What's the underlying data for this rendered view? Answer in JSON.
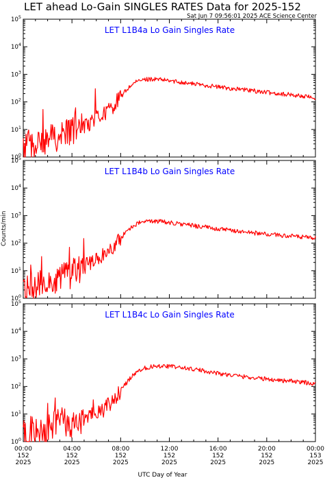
{
  "header": {
    "title": "LET ahead Lo-Gain SINGLES RATES Data for 2025-152",
    "timestamp": "Sat Jun  7 09:56:01 2025 ACE Science Center"
  },
  "axes": {
    "ylabel": "Counts/min",
    "xlabel": "UTC Day of Year"
  },
  "colors": {
    "trace": "#ff0000",
    "panel_title": "#0000ff",
    "frame": "#000000"
  },
  "chart_data": {
    "type": "line",
    "scale": "log-y",
    "ylim": [
      1,
      100000
    ],
    "xlim": [
      0,
      24
    ],
    "y_ticks": [
      {
        "value": 1,
        "base": "10",
        "exp": "0"
      },
      {
        "value": 10,
        "base": "10",
        "exp": "1"
      },
      {
        "value": 100,
        "base": "10",
        "exp": "2"
      },
      {
        "value": 1000,
        "base": "10",
        "exp": "3"
      },
      {
        "value": 10000,
        "base": "10",
        "exp": "4"
      },
      {
        "value": 100000,
        "base": "10",
        "exp": "5"
      }
    ],
    "x_ticks": [
      {
        "hour": 0,
        "time": "00:00",
        "day": "152",
        "year": "2025"
      },
      {
        "hour": 4,
        "time": "04:00",
        "day": "152",
        "year": "2025"
      },
      {
        "hour": 8,
        "time": "08:00",
        "day": "152",
        "year": "2025"
      },
      {
        "hour": 12,
        "time": "12:00",
        "day": "152",
        "year": "2025"
      },
      {
        "hour": 16,
        "time": "16:00",
        "day": "152",
        "year": "2025"
      },
      {
        "hour": 20,
        "time": "20:00",
        "day": "152",
        "year": "2025"
      },
      {
        "hour": 24,
        "time": "00:00",
        "day": "153",
        "year": "2025"
      }
    ],
    "panels": [
      {
        "title": "LET L1B4a Lo Gain Singles Rate",
        "x": [
          0,
          0.5,
          1,
          1.5,
          2,
          2.5,
          3,
          3.5,
          4,
          4.5,
          5,
          5.5,
          6,
          6.5,
          7,
          7.5,
          8,
          8.5,
          9,
          9.5,
          10,
          10.5,
          11,
          11.5,
          12,
          12.5,
          13,
          13.5,
          14,
          15,
          16,
          17,
          18,
          19,
          20,
          21,
          22,
          23,
          24
        ],
        "y": [
          2,
          3,
          2.5,
          3,
          4,
          5,
          6,
          7,
          8,
          10,
          14,
          18,
          25,
          35,
          50,
          80,
          150,
          280,
          450,
          580,
          650,
          680,
          650,
          620,
          580,
          550,
          520,
          480,
          450,
          400,
          350,
          310,
          280,
          250,
          220,
          200,
          180,
          160,
          140
        ]
      },
      {
        "title": "LET L1B4b Lo Gain Singles Rate",
        "x": [
          0,
          0.5,
          1,
          1.5,
          2,
          2.5,
          3,
          3.5,
          4,
          4.5,
          5,
          5.5,
          6,
          6.5,
          7,
          7.5,
          8,
          8.5,
          9,
          9.5,
          10,
          10.5,
          11,
          11.5,
          12,
          12.5,
          13,
          13.5,
          14,
          15,
          16,
          17,
          18,
          19,
          20,
          21,
          22,
          23,
          24
        ],
        "y": [
          2,
          3,
          2.5,
          3,
          4,
          5,
          6,
          7,
          8,
          10,
          14,
          18,
          25,
          35,
          50,
          80,
          150,
          280,
          420,
          540,
          600,
          640,
          620,
          600,
          560,
          520,
          490,
          460,
          430,
          380,
          330,
          290,
          260,
          235,
          210,
          195,
          180,
          165,
          150
        ]
      },
      {
        "title": "LET L1B4c Lo Gain Singles Rate",
        "x": [
          0,
          0.5,
          1,
          1.5,
          2,
          2.5,
          3,
          3.5,
          4,
          4.5,
          5,
          5.5,
          6,
          6.5,
          7,
          7.5,
          8,
          8.5,
          9,
          9.5,
          10,
          10.5,
          11,
          11.5,
          12,
          12.5,
          13,
          13.5,
          14,
          15,
          16,
          17,
          18,
          19,
          20,
          21,
          22,
          23,
          24
        ],
        "y": [
          2,
          2.5,
          2,
          2.5,
          3,
          4,
          5,
          5,
          5,
          6,
          7,
          8,
          10,
          14,
          20,
          35,
          70,
          140,
          260,
          380,
          470,
          520,
          560,
          560,
          540,
          510,
          480,
          450,
          420,
          360,
          300,
          260,
          230,
          205,
          185,
          170,
          155,
          140,
          125
        ]
      }
    ]
  }
}
